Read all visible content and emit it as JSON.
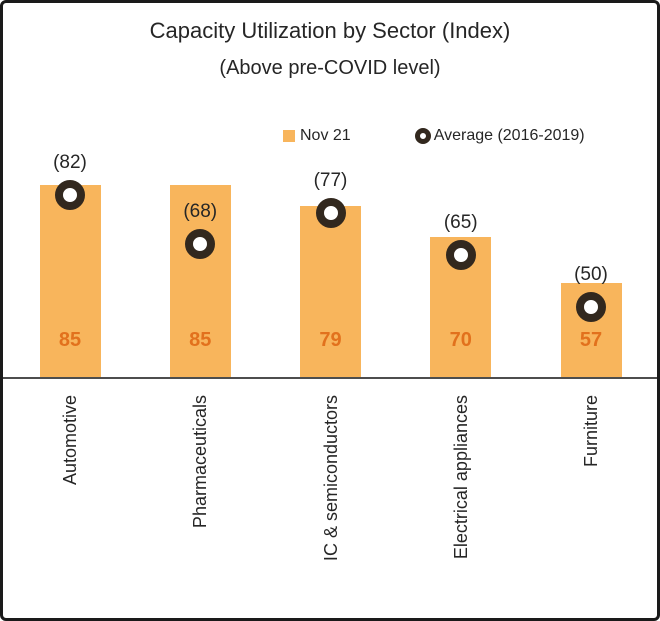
{
  "title": "Capacity Utilization by Sector (Index)",
  "subtitle": "(Above pre-COVID level)",
  "legend": {
    "items": [
      {
        "label": "Nov 21",
        "marker": "square"
      },
      {
        "label": "Average (2016-2019)",
        "marker": "donut"
      }
    ]
  },
  "chart_data": {
    "type": "bar",
    "title": "Capacity Utilization by Sector (Index)",
    "subtitle": "(Above pre-COVID level)",
    "categories": [
      "Automotive",
      "Pharmaceuticals",
      "IC & semiconductors",
      "Electrical appliances",
      "Furniture"
    ],
    "series": [
      {
        "name": "Nov 21",
        "type": "bar",
        "values": [
          85,
          85,
          79,
          70,
          57
        ]
      },
      {
        "name": "Average (2016-2019)",
        "type": "donut-marker",
        "values": [
          82,
          68,
          77,
          65,
          50
        ]
      }
    ],
    "bar_value_labels": [
      "85",
      "85",
      "79",
      "70",
      "57"
    ],
    "avg_value_labels": [
      "(82)",
      "(68)",
      "(77)",
      "(65)",
      "(50)"
    ],
    "xlabel": "",
    "ylabel": "",
    "ylim": [
      30,
      95
    ],
    "grid": false,
    "legend_position": "top-center",
    "category_label_rotation": -90,
    "colors": {
      "bar": "#F8B55C",
      "bar_value_label": "#E2711D",
      "marker_ring": "#32281E",
      "marker_center": "#FFFFFF",
      "text": "#262626",
      "axis_line": "#4D4D4D",
      "frame_border": "#1A1A1A",
      "background": "#FFFFFF"
    }
  }
}
